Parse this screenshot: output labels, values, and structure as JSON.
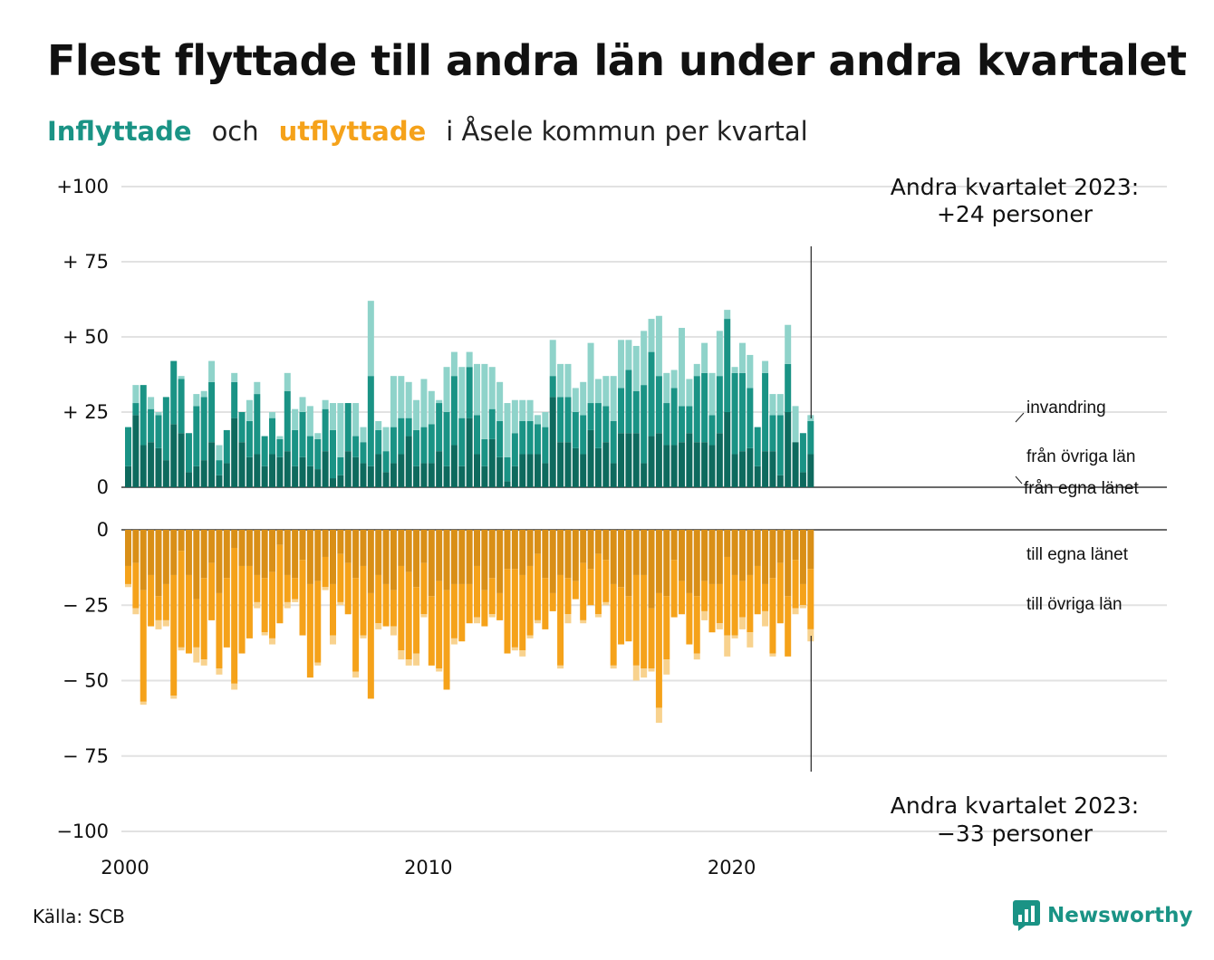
{
  "title": "Flest flyttade till andra län under andra kvartalet",
  "subtitle": {
    "part1": "Inflyttade",
    "part2": "och",
    "part3": "utflyttade",
    "part4": "i Åsele kommun per kvartal"
  },
  "source": "Källa: SCB",
  "logo_text": "Newsworthy",
  "colors": {
    "in_own": "#0e6a5e",
    "in_other": "#1a9385",
    "in_imm": "#8fd3ca",
    "out_own": "#d98f17",
    "out_other": "#f5a21a",
    "out_emi": "#f8d28e"
  },
  "chart_data": {
    "type": "bar",
    "x_start": "2000 Q1",
    "x_ticks": [
      "2000",
      "2010",
      "2020"
    ],
    "y_ticks_top": [
      "+100",
      "+ 75",
      "+ 50",
      "+ 25",
      "0"
    ],
    "y_ticks_bottom": [
      "0",
      "− 25",
      "− 50",
      "− 75",
      "−100"
    ],
    "ylim_in": [
      0,
      100
    ],
    "ylim_out": [
      -100,
      0
    ],
    "annotation_top": [
      "Andra kvartalet 2023:",
      "+24 personer"
    ],
    "annotation_bottom": [
      "Andra kvartalet 2023:",
      "−33 personer"
    ],
    "series_labels": {
      "in_imm": "invandring",
      "in_other": "från övriga län",
      "in_own": "från egna länet",
      "out_own": "till egna länet",
      "out_other": "till övriga län"
    },
    "inflyttade": {
      "fran_egna_lanet": [
        7,
        24,
        14,
        15,
        13,
        9,
        21,
        18,
        5,
        7,
        9,
        15,
        4,
        8,
        23,
        15,
        10,
        11,
        7,
        11,
        10,
        12,
        7,
        10,
        7,
        6,
        12,
        3,
        4,
        12,
        10,
        8,
        7,
        11,
        5,
        8,
        11,
        17,
        7,
        8,
        8,
        12,
        7,
        14,
        7,
        23,
        11,
        7,
        16,
        10,
        2,
        7,
        11,
        11,
        11,
        8,
        30,
        15,
        15,
        13,
        11,
        19,
        13,
        15,
        8,
        18,
        18,
        18,
        8,
        17,
        18,
        14,
        14,
        15,
        18,
        15,
        15,
        14,
        18,
        25,
        11,
        12,
        13,
        7,
        12,
        12,
        4,
        25,
        15,
        5,
        11
      ],
      "fran_ovriga_lan": [
        13,
        4,
        20,
        11,
        11,
        21,
        21,
        18,
        13,
        20,
        21,
        20,
        5,
        11,
        12,
        10,
        12,
        20,
        10,
        12,
        6,
        20,
        12,
        15,
        10,
        10,
        14,
        16,
        6,
        16,
        7,
        7,
        30,
        8,
        7,
        12,
        12,
        6,
        12,
        12,
        13,
        16,
        18,
        23,
        16,
        17,
        13,
        9,
        10,
        12,
        8,
        11,
        11,
        11,
        10,
        12,
        7,
        15,
        15,
        12,
        13,
        9,
        15,
        12,
        14,
        15,
        21,
        14,
        26,
        28,
        19,
        14,
        19,
        12,
        9,
        22,
        23,
        10,
        19,
        31,
        27,
        26,
        20,
        13,
        26,
        12,
        20,
        16,
        0,
        13,
        11
      ],
      "invandring": [
        0,
        6,
        0,
        4,
        1,
        0,
        0,
        1,
        0,
        4,
        2,
        7,
        5,
        0,
        3,
        0,
        7,
        4,
        0,
        2,
        1,
        6,
        7,
        5,
        10,
        2,
        3,
        9,
        18,
        0,
        11,
        5,
        25,
        3,
        8,
        17,
        14,
        12,
        10,
        16,
        11,
        1,
        15,
        8,
        17,
        5,
        17,
        25,
        14,
        13,
        18,
        11,
        7,
        7,
        3,
        5,
        12,
        11,
        11,
        8,
        11,
        20,
        8,
        10,
        15,
        16,
        10,
        15,
        18,
        11,
        20,
        10,
        6,
        26,
        9,
        4,
        10,
        14,
        15,
        3,
        2,
        10,
        11,
        0,
        4,
        7,
        7,
        13,
        12,
        0,
        2
      ]
    },
    "utflyttade": {
      "till_egna_lanet": [
        12,
        11,
        20,
        15,
        22,
        18,
        15,
        7,
        15,
        23,
        16,
        11,
        21,
        16,
        6,
        12,
        12,
        15,
        16,
        14,
        5,
        15,
        16,
        10,
        18,
        17,
        9,
        18,
        8,
        11,
        16,
        12,
        21,
        15,
        18,
        20,
        12,
        14,
        19,
        11,
        22,
        17,
        20,
        18,
        18,
        18,
        12,
        20,
        16,
        21,
        13,
        13,
        15,
        12,
        8,
        16,
        21,
        15,
        16,
        17,
        11,
        13,
        8,
        10,
        18,
        19,
        22,
        15,
        15,
        26,
        21,
        22,
        10,
        17,
        21,
        22,
        17,
        18,
        18,
        9,
        15,
        17,
        15,
        12,
        18,
        16,
        11,
        22,
        10,
        18,
        13
      ],
      "till_ovriga_lan": [
        6,
        15,
        37,
        17,
        8,
        12,
        40,
        32,
        26,
        16,
        27,
        19,
        25,
        23,
        45,
        29,
        24,
        9,
        18,
        22,
        26,
        9,
        7,
        25,
        31,
        27,
        10,
        17,
        16,
        17,
        31,
        23,
        35,
        16,
        14,
        12,
        28,
        29,
        22,
        17,
        23,
        29,
        33,
        18,
        19,
        13,
        17,
        12,
        12,
        9,
        28,
        26,
        25,
        23,
        22,
        17,
        6,
        30,
        12,
        6,
        19,
        12,
        20,
        14,
        27,
        19,
        15,
        30,
        31,
        20,
        38,
        21,
        19,
        11,
        17,
        19,
        10,
        16,
        13,
        26,
        20,
        12,
        19,
        16,
        9,
        25,
        20,
        20,
        16,
        7,
        20
      ],
      "utvandring": [
        1,
        2,
        1,
        0,
        3,
        2,
        1,
        1,
        0,
        5,
        2,
        0,
        2,
        0,
        2,
        0,
        0,
        2,
        1,
        2,
        0,
        2,
        1,
        0,
        0,
        1,
        1,
        3,
        1,
        0,
        2,
        1,
        0,
        2,
        0,
        3,
        3,
        2,
        4,
        1,
        0,
        1,
        0,
        2,
        0,
        0,
        2,
        0,
        1,
        0,
        0,
        1,
        2,
        1,
        1,
        0,
        0,
        1,
        3,
        0,
        1,
        0,
        1,
        1,
        1,
        0,
        0,
        5,
        3,
        1,
        5,
        5,
        0,
        0,
        0,
        2,
        3,
        0,
        2,
        7,
        1,
        4,
        5,
        0,
        5,
        1,
        0,
        0,
        2,
        1,
        4
      ]
    }
  }
}
